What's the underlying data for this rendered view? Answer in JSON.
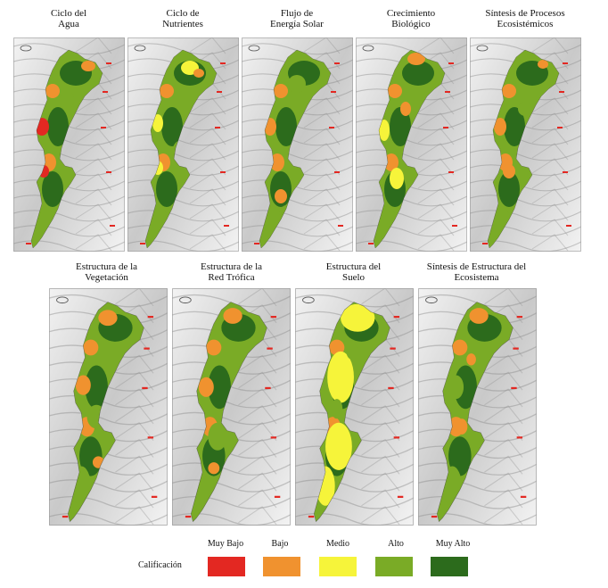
{
  "colors": {
    "muy_bajo": "#e32822",
    "bajo": "#f0922f",
    "medio": "#f6f43a",
    "alto": "#7aab26",
    "muy_alto": "#2c6b1c",
    "terrain_light": "#f3f3f3",
    "terrain_mid": "#c9c9c9",
    "terrain_dark": "#8c8c8c"
  },
  "maps": [
    {
      "id": "ciclo-agua",
      "title": [
        "Ciclo del",
        "Agua"
      ],
      "scheme": "agua"
    },
    {
      "id": "ciclo-nutrientes",
      "title": [
        "Ciclo de",
        "Nutrientes"
      ],
      "scheme": "nutrientes"
    },
    {
      "id": "flujo-energia",
      "title": [
        "Flujo de",
        "Energía Solar"
      ],
      "scheme": "energia"
    },
    {
      "id": "crecimiento",
      "title": [
        "Crecimiento",
        "Biológico"
      ],
      "scheme": "crecimiento"
    },
    {
      "id": "sintesis-procesos",
      "title": [
        "Síntesis de Procesos",
        "Ecosistémicos"
      ],
      "scheme": "sintesisP"
    },
    {
      "id": "estructura-vegetacion",
      "title": [
        "Estructura de la",
        "Vegetación"
      ],
      "scheme": "vegetacion"
    },
    {
      "id": "estructura-red",
      "title": [
        "Estructura de la",
        "Red Trófica"
      ],
      "scheme": "red"
    },
    {
      "id": "estructura-suelo",
      "title": [
        "Estructura del",
        "Suelo"
      ],
      "scheme": "suelo"
    },
    {
      "id": "sintesis-estructura",
      "title": [
        "Síntesis de Estructura del",
        "Ecosistema"
      ],
      "scheme": "sintesisE"
    }
  ],
  "legend": {
    "title": "Calificación",
    "items": [
      {
        "label": "Muy Bajo",
        "color": "#e32822"
      },
      {
        "label": "Bajo",
        "color": "#f0922f"
      },
      {
        "label": "Medio",
        "color": "#f6f43a"
      },
      {
        "label": "Alto",
        "color": "#7aab26"
      },
      {
        "label": "Muy Alto",
        "color": "#2c6b1c"
      }
    ]
  }
}
